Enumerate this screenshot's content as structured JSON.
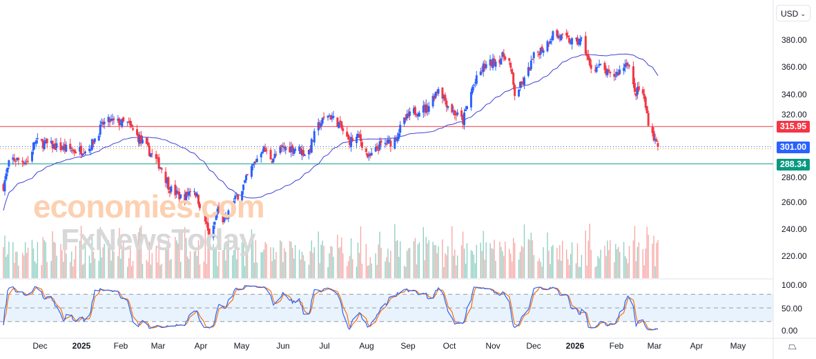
{
  "currency_selector": {
    "label": "USD",
    "chevron": "chevron-down-icon"
  },
  "watermark": {
    "line1": "economies.com",
    "line2": "FxNewsToday"
  },
  "price_axis_labels": [
    "380.00",
    "360.00",
    "340.00",
    "320.00",
    "280.00",
    "260.00",
    "240.00",
    "220.00"
  ],
  "osc_axis_labels": [
    "100.00",
    "50.00",
    "0.00"
  ],
  "price_tags": [
    {
      "value": "315.95",
      "color": "#f23645"
    },
    {
      "value": "301.00",
      "color": "#2962ff"
    },
    {
      "value": "288.34",
      "color": "#089981"
    }
  ],
  "time_labels": [
    "Dec",
    "2025",
    "Feb",
    "Mar",
    "Apr",
    "May",
    "Jun",
    "Jul",
    "Aug",
    "Sep",
    "Oct",
    "Nov",
    "Dec",
    "2026",
    "Feb",
    "Mar",
    "Apr",
    "May"
  ],
  "chart_data": {
    "type": "candlestick",
    "start_date": "2024-11-15",
    "price_path": [
      [
        0,
        272
      ],
      [
        5,
        292
      ],
      [
        18,
        290
      ],
      [
        23,
        305
      ],
      [
        43,
        300
      ],
      [
        53,
        298
      ],
      [
        63,
        300
      ],
      [
        73,
        318
      ],
      [
        78,
        320
      ],
      [
        91,
        318
      ],
      [
        101,
        305
      ],
      [
        109,
        295
      ],
      [
        116,
        285
      ],
      [
        122,
        270
      ],
      [
        132,
        262
      ],
      [
        139,
        272
      ],
      [
        147,
        250
      ],
      [
        152,
        230
      ],
      [
        157,
        255
      ],
      [
        162,
        245
      ],
      [
        170,
        262
      ],
      [
        175,
        270
      ],
      [
        182,
        285
      ],
      [
        190,
        300
      ],
      [
        197,
        292
      ],
      [
        205,
        300
      ],
      [
        215,
        300
      ],
      [
        223,
        295
      ],
      [
        230,
        315
      ],
      [
        238,
        325
      ],
      [
        246,
        318
      ],
      [
        253,
        305
      ],
      [
        261,
        308
      ],
      [
        268,
        292
      ],
      [
        276,
        302
      ],
      [
        286,
        305
      ],
      [
        294,
        320
      ],
      [
        301,
        327
      ],
      [
        311,
        330
      ],
      [
        319,
        345
      ],
      [
        327,
        330
      ],
      [
        337,
        320
      ],
      [
        344,
        345
      ],
      [
        352,
        360
      ],
      [
        362,
        365
      ],
      [
        370,
        370
      ],
      [
        375,
        340
      ],
      [
        382,
        350
      ],
      [
        390,
        370
      ],
      [
        397,
        375
      ],
      [
        403,
        385
      ],
      [
        413,
        380
      ],
      [
        420,
        378
      ],
      [
        425,
        380
      ],
      [
        430,
        360
      ],
      [
        438,
        360
      ],
      [
        446,
        352
      ],
      [
        453,
        358
      ],
      [
        458,
        365
      ],
      [
        463,
        340
      ],
      [
        468,
        345
      ],
      [
        473,
        320
      ],
      [
        478,
        305
      ],
      [
        482,
        301
      ]
    ],
    "ylim": [
      210,
      390
    ],
    "horizontal_levels": [
      315.95,
      301.0,
      288.34
    ],
    "last_price": 301.0,
    "moving_average": "blue line",
    "oscillator": {
      "name": "Stochastic",
      "ylim": [
        0,
        100
      ],
      "bands": [
        80,
        50,
        20
      ]
    },
    "colors": {
      "up": "#2962ff",
      "down": "#f23645",
      "ma": "#3f3fd6",
      "osc_k": "#2962ff",
      "osc_d": "#ff6d00"
    }
  }
}
